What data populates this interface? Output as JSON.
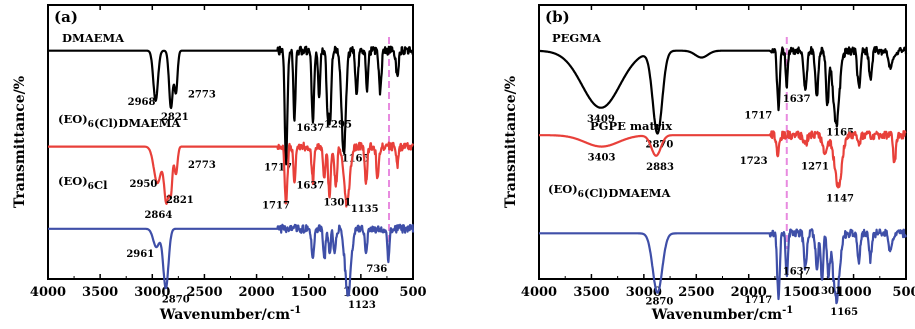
{
  "chart_data": [
    {
      "type": "line",
      "panel_label": "(a)",
      "xlabel": "Wavenumber/cm",
      "xlabel_sup": "-1",
      "ylabel": "Transmittance/%",
      "xlim": [
        4000,
        500
      ],
      "x_ticks": [
        4000,
        3500,
        3000,
        2500,
        2000,
        1500,
        1000,
        500
      ],
      "x_tick_labels": [
        "4000",
        "3500",
        "3000",
        "2500",
        "2000",
        "1500",
        "1000",
        "500"
      ],
      "marker_line": {
        "x": 730,
        "color": "#e88adf"
      },
      "series": [
        {
          "name": "DMAEMA",
          "name_parts": [
            {
              "text": "DMAEMA"
            }
          ],
          "color": "#000000",
          "baseline": 10,
          "peaks": [
            {
              "x": 2968,
              "depth": 2.2,
              "width": 22,
              "label": "2968"
            },
            {
              "x": 2821,
              "depth": 2.5,
              "width": 18,
              "label": "2821"
            },
            {
              "x": 2773,
              "depth": 1.8,
              "width": 15,
              "label": "2773"
            },
            {
              "x": 1717,
              "depth": 5.0,
              "width": 12,
              "label": "1717"
            },
            {
              "x": 1637,
              "depth": 3.0,
              "width": 10,
              "label": "1637"
            },
            {
              "x": 1460,
              "depth": 3.0,
              "width": 12
            },
            {
              "x": 1400,
              "depth": 2.0,
              "width": 10
            },
            {
              "x": 1320,
              "depth": 2.5,
              "width": 10
            },
            {
              "x": 1295,
              "depth": 3.0,
              "width": 12,
              "label": "1295"
            },
            {
              "x": 1165,
              "depth": 4.5,
              "width": 20,
              "label": "1165"
            },
            {
              "x": 1040,
              "depth": 2.0,
              "width": 12
            },
            {
              "x": 940,
              "depth": 1.8,
              "width": 10
            },
            {
              "x": 815,
              "depth": 1.8,
              "width": 12
            },
            {
              "x": 650,
              "depth": 1.2,
              "width": 12
            }
          ]
        },
        {
          "name": "(EO)6(Cl)DMAEMA",
          "name_parts": [
            {
              "text": "(EO)"
            },
            {
              "text": "6",
              "sub": true
            },
            {
              "text": "(Cl)DMAEMA"
            }
          ],
          "color": "#e8403a",
          "baseline": 5.8,
          "peaks": [
            {
              "x": 2950,
              "depth": 1.6,
              "width": 35,
              "label": "2950"
            },
            {
              "x": 2864,
              "depth": 2.4,
              "width": 22,
              "label": "2864"
            },
            {
              "x": 2821,
              "depth": 1.8,
              "width": 15,
              "label": "2821"
            },
            {
              "x": 2773,
              "depth": 1.2,
              "width": 15,
              "label": "2773"
            },
            {
              "x": 1717,
              "depth": 2.6,
              "width": 12,
              "label": "1717"
            },
            {
              "x": 1637,
              "depth": 1.5,
              "width": 10,
              "label": "1637"
            },
            {
              "x": 1460,
              "depth": 1.5,
              "width": 12
            },
            {
              "x": 1350,
              "depth": 1.4,
              "width": 12
            },
            {
              "x": 1301,
              "depth": 2.2,
              "width": 12,
              "label": "1301"
            },
            {
              "x": 1240,
              "depth": 1.8,
              "width": 12
            },
            {
              "x": 1135,
              "depth": 2.5,
              "width": 28,
              "label": "1135"
            },
            {
              "x": 950,
              "depth": 1.5,
              "width": 12
            },
            {
              "x": 840,
              "depth": 1.3,
              "width": 12
            },
            {
              "x": 650,
              "depth": 0.8,
              "width": 12
            }
          ]
        },
        {
          "name": "(EO)6Cl",
          "name_parts": [
            {
              "text": "(EO)"
            },
            {
              "text": "6",
              "sub": true
            },
            {
              "text": "Cl"
            }
          ],
          "color": "#3f4fa8",
          "baseline": 2.2,
          "peaks": [
            {
              "x": 2961,
              "depth": 0.8,
              "width": 30,
              "label": "2961"
            },
            {
              "x": 2870,
              "depth": 2.6,
              "width": 25,
              "label": "2870"
            },
            {
              "x": 1460,
              "depth": 1.3,
              "width": 12
            },
            {
              "x": 1350,
              "depth": 1.3,
              "width": 12
            },
            {
              "x": 1300,
              "depth": 1.0,
              "width": 12
            },
            {
              "x": 1250,
              "depth": 1.0,
              "width": 12
            },
            {
              "x": 1123,
              "depth": 2.9,
              "width": 28,
              "label": "1123"
            },
            {
              "x": 950,
              "depth": 1.1,
              "width": 12
            },
            {
              "x": 736,
              "depth": 1.4,
              "width": 10,
              "label": "736"
            }
          ]
        }
      ]
    },
    {
      "type": "line",
      "panel_label": "(b)",
      "xlabel": "Wavenumber/cm",
      "xlabel_sup": "-1",
      "ylabel": "Transmittance/%",
      "xlim": [
        4000,
        500
      ],
      "x_ticks": [
        4000,
        3500,
        3000,
        2500,
        2000,
        1500,
        1000,
        500
      ],
      "x_tick_labels": [
        "4000",
        "3500",
        "3000",
        "2500",
        "2000",
        "1500",
        "1000",
        "500"
      ],
      "marker_line": {
        "x": 1637,
        "color": "#e88adf"
      },
      "series": [
        {
          "name": "PEGMA",
          "name_parts": [
            {
              "text": "PEGMA"
            }
          ],
          "color": "#000000",
          "baseline": 10,
          "peaks": [
            {
              "x": 3409,
              "depth": 2.5,
              "width": 180,
              "label": "3409"
            },
            {
              "x": 2870,
              "depth": 3.6,
              "width": 45,
              "label": "2870"
            },
            {
              "x": 2450,
              "depth": 0.3,
              "width": 60
            },
            {
              "x": 1717,
              "depth": 2.5,
              "width": 12,
              "label": "1717"
            },
            {
              "x": 1637,
              "depth": 1.5,
              "width": 10,
              "label": "1637"
            },
            {
              "x": 1460,
              "depth": 1.8,
              "width": 15
            },
            {
              "x": 1350,
              "depth": 2.0,
              "width": 14
            },
            {
              "x": 1250,
              "depth": 2.2,
              "width": 14
            },
            {
              "x": 1165,
              "depth": 3.2,
              "width": 30,
              "label": "1165"
            },
            {
              "x": 950,
              "depth": 1.6,
              "width": 14
            },
            {
              "x": 840,
              "depth": 1.2,
              "width": 14
            },
            {
              "x": 650,
              "depth": 0.8,
              "width": 20
            }
          ]
        },
        {
          "name": "PGPE matrix",
          "name_parts": [
            {
              "text": "PGPE matrix"
            }
          ],
          "color": "#e8403a",
          "baseline": 6.3,
          "peaks": [
            {
              "x": 3403,
              "depth": 0.5,
              "width": 160,
              "label": "3403"
            },
            {
              "x": 2883,
              "depth": 0.9,
              "width": 45,
              "label": "2883"
            },
            {
              "x": 1723,
              "depth": 0.9,
              "width": 14,
              "label": "1723"
            },
            {
              "x": 1460,
              "depth": 0.4,
              "width": 15
            },
            {
              "x": 1271,
              "depth": 0.8,
              "width": 25,
              "label": "1271"
            },
            {
              "x": 1147,
              "depth": 2.2,
              "width": 35,
              "label": "1147"
            },
            {
              "x": 950,
              "depth": 0.4,
              "width": 15
            },
            {
              "x": 610,
              "depth": 1.3,
              "width": 12
            }
          ]
        },
        {
          "name": "(EO)6(Cl)DMAEMA",
          "name_parts": [
            {
              "text": "(EO)"
            },
            {
              "text": "6",
              "sub": true
            },
            {
              "text": "(Cl)DMAEMA"
            }
          ],
          "color": "#3f4fa8",
          "baseline": 2.0,
          "peaks": [
            {
              "x": 2870,
              "depth": 2.6,
              "width": 45,
              "label": "2870"
            },
            {
              "x": 1717,
              "depth": 2.8,
              "width": 12,
              "label": "1717"
            },
            {
              "x": 1637,
              "depth": 1.8,
              "width": 10,
              "label": "1637"
            },
            {
              "x": 1460,
              "depth": 1.5,
              "width": 14
            },
            {
              "x": 1350,
              "depth": 1.6,
              "width": 12
            },
            {
              "x": 1301,
              "depth": 2.0,
              "width": 12,
              "label": "1301"
            },
            {
              "x": 1240,
              "depth": 1.8,
              "width": 12
            },
            {
              "x": 1165,
              "depth": 2.9,
              "width": 30,
              "label": "1165"
            },
            {
              "x": 950,
              "depth": 1.3,
              "width": 12
            },
            {
              "x": 840,
              "depth": 1.2,
              "width": 12
            },
            {
              "x": 650,
              "depth": 0.8,
              "width": 15
            }
          ]
        }
      ]
    }
  ]
}
